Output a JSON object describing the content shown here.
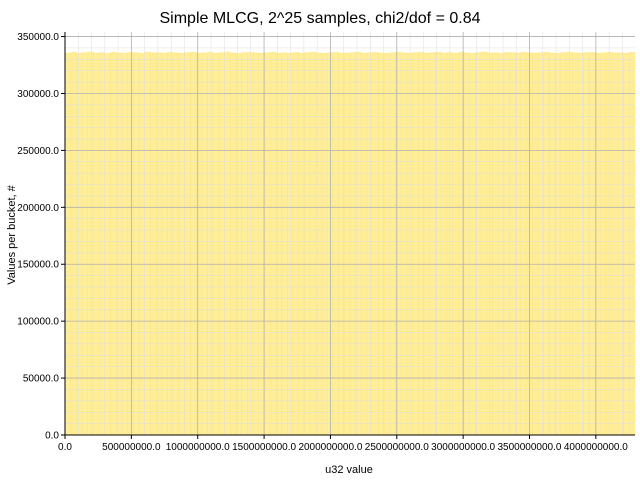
{
  "chart_data": {
    "type": "bar",
    "title": "Simple MLCG, 2^25 samples, chi2/dof = 0.84",
    "xlabel": "u32 value",
    "ylabel": "Values per bucket, #",
    "xlim": [
      0,
      4294967296
    ],
    "ylim": [
      0,
      354000
    ],
    "x_ticks": [
      0,
      500000000,
      1000000000,
      1500000000,
      2000000000,
      2500000000,
      3000000000,
      3500000000,
      4000000000
    ],
    "x_tick_labels": [
      "0.0",
      "500000000.0",
      "1000000000.0",
      "1500000000.0",
      "2000000000.0",
      "2500000000.0",
      "3000000000.0",
      "3500000000.0",
      "4000000000.0"
    ],
    "y_ticks": [
      0,
      50000,
      100000,
      150000,
      200000,
      250000,
      300000,
      350000
    ],
    "y_tick_labels": [
      "0.0",
      "50000.0",
      "100000.0",
      "150000.0",
      "200000.0",
      "250000.0",
      "300000.0",
      "350000.0"
    ],
    "bin_count": 100,
    "bin_width": 42949672.96,
    "values": [
      335500,
      336100,
      335200,
      335800,
      336400,
      335300,
      335900,
      335100,
      336200,
      335600,
      335400,
      336000,
      335700,
      335200,
      336300,
      335500,
      335800,
      335300,
      336100,
      335600,
      335200,
      335900,
      336200,
      335400,
      335700,
      336000,
      335300,
      335800,
      336400,
      335500,
      335100,
      335900,
      336100,
      335600,
      335300,
      335800,
      336200,
      335400,
      335700,
      335500,
      336000,
      335300,
      335900,
      336300,
      335600,
      335200,
      335800,
      336100,
      335500,
      335400,
      335900,
      336200,
      335300,
      335700,
      336000,
      335500,
      335200,
      335800,
      336300,
      335600,
      335400,
      335900,
      336100,
      335300,
      335700,
      336200,
      335500,
      335800,
      335200,
      336000,
      335600,
      335300,
      335900,
      336400,
      335500,
      335700,
      335100,
      336000,
      335800,
      335400,
      336200,
      335600,
      335300,
      335900,
      336100,
      335500,
      335200,
      335800,
      336300,
      335600,
      335400,
      335900,
      336000,
      335300,
      335700,
      336200,
      335500,
      335800,
      335400,
      336100
    ],
    "grid": true,
    "minor_grid": true,
    "colors": {
      "bar_fill": "#ffee99",
      "bar_edge": "#ffe580",
      "grid_major": "#b0b0b0",
      "grid_minor": "#dedede"
    }
  }
}
